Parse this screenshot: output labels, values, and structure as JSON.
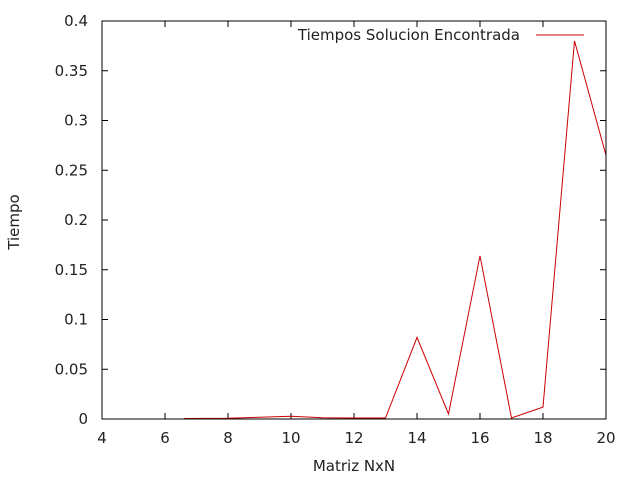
{
  "chart_data": {
    "type": "line",
    "title": "",
    "xlabel": "Matriz NxN",
    "ylabel": "Tiempo",
    "xlim": [
      4,
      20
    ],
    "ylim": [
      0,
      0.4
    ],
    "x_ticks": [
      4,
      6,
      8,
      10,
      12,
      14,
      16,
      18,
      20
    ],
    "x_tick_labels": [
      "4",
      "6",
      "8",
      "10",
      "12",
      "14",
      "16",
      "18",
      "20"
    ],
    "y_ticks": [
      0,
      0.05,
      0.1,
      0.15,
      0.2,
      0.25,
      0.3,
      0.35,
      0.4
    ],
    "y_tick_labels": [
      "0",
      "0.05",
      "0.1",
      "0.15",
      "0.2",
      "0.25",
      "0.3",
      "0.35",
      "0.4"
    ],
    "grid": false,
    "legend_position": "top-right",
    "series": [
      {
        "name": "Tiempos Solucion Encontrada",
        "color": "#cc0000",
        "x": [
          6.6,
          8,
          9,
          10,
          11,
          12,
          13,
          14,
          15,
          16,
          17,
          18,
          19,
          20
        ],
        "y": [
          0.0005,
          0.0008,
          0.0018,
          0.0028,
          0.0012,
          0.001,
          0.001,
          0.082,
          0.005,
          0.164,
          0.001,
          0.012,
          0.38,
          0.265
        ]
      }
    ]
  }
}
